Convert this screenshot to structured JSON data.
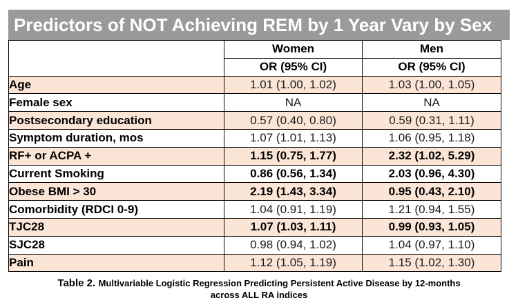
{
  "title": "Predictors of NOT Achieving REM by 1 Year Vary by Sex",
  "header": {
    "women": "Women",
    "men": "Men",
    "or_ci": "OR (95% CI)"
  },
  "rows": [
    {
      "label": "Age",
      "women": "1.01 (1.00, 1.02)",
      "men": "1.03 (1.00, 1.05)"
    },
    {
      "label": "Female sex",
      "women": "NA",
      "men": "NA"
    },
    {
      "label": "Postsecondary education",
      "women": "0.57 (0.40, 0.80)",
      "men": "0.59 (0.31, 1.11)"
    },
    {
      "label": "Symptom duration, mos",
      "women": "1.07 (1.01, 1.13)",
      "men": "1.06 (0.95, 1.18)"
    },
    {
      "label": "RF+ or ACPA +",
      "women": "1.15 (0.75, 1.77)",
      "men": "2.32 (1.02, 5.29)"
    },
    {
      "label": "Current Smoking",
      "women": "0.86 (0.56, 1.34)",
      "men": "2.03 (0.96, 4.30)"
    },
    {
      "label": "Obese BMI > 30",
      "women": "2.19 (1.43, 3.34)",
      "men": "0.95 (0.43, 2.10)"
    },
    {
      "label": "Comorbidity (RDCI 0-9)",
      "women": "1.04 (0.91, 1.19)",
      "men": "1.21 (0.94, 1.55)"
    },
    {
      "label": "TJC28",
      "women": "1.07 (1.03, 1.11)",
      "men": "0.99 (0.93, 1.05)"
    },
    {
      "label": "SJC28",
      "women": "0.98 (0.94, 1.02)",
      "men": "1.04 (0.97, 1.10)"
    },
    {
      "label": "Pain",
      "women": "1.12 (1.05, 1.19)",
      "men": "1.15 (1.02, 1.30)"
    }
  ],
  "caption": {
    "lead": "Table 2.",
    "rest": "Multivariable Logistic Regression Predicting Persistent Active Disease by 12-months",
    "line2": "across ALL RA indices"
  },
  "colors": {
    "title_bg": "#9a9a9a",
    "row_shade": "#fbe5d6"
  }
}
